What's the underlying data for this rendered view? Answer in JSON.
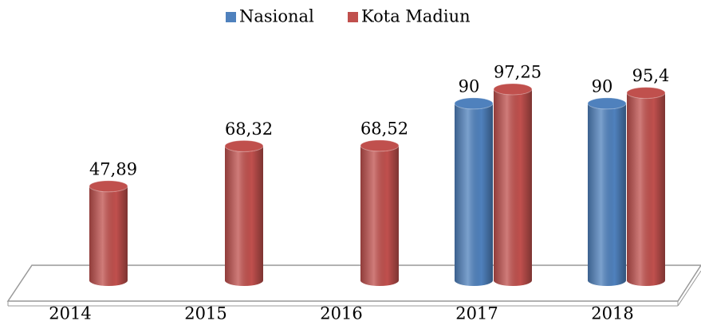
{
  "chart_data": {
    "type": "bar3d",
    "categories": [
      "2014",
      "2015",
      "2016",
      "2017",
      "2018"
    ],
    "series": [
      {
        "name": "Nasional",
        "color": "#4f81bd",
        "values": [
          null,
          null,
          null,
          90,
          90
        ]
      },
      {
        "name": "Kota Madiun",
        "color": "#c0504d",
        "values": [
          47.89,
          68.32,
          68.52,
          97.25,
          95.4
        ],
        "value_labels": [
          "47,89",
          "68,32",
          "68,52",
          "97,25",
          "95,4"
        ]
      }
    ],
    "legend": "top"
  }
}
